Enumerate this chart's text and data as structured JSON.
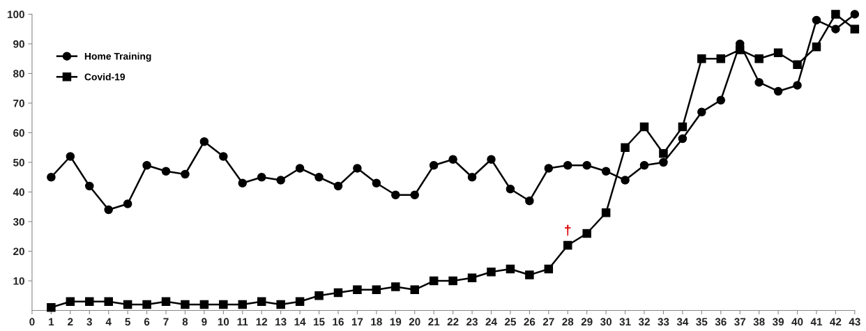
{
  "chart_data": {
    "type": "line",
    "x": [
      1,
      2,
      3,
      4,
      5,
      6,
      7,
      8,
      9,
      10,
      11,
      12,
      13,
      14,
      15,
      16,
      17,
      18,
      19,
      20,
      21,
      22,
      23,
      24,
      25,
      26,
      27,
      28,
      29,
      30,
      31,
      32,
      33,
      34,
      35,
      36,
      37,
      38,
      39,
      40,
      41,
      42,
      43
    ],
    "series": [
      {
        "name": "Home Training",
        "color": "#000000",
        "marker": "circle",
        "values": [
          45,
          52,
          42,
          34,
          36,
          49,
          47,
          46,
          57,
          52,
          43,
          45,
          44,
          48,
          45,
          42,
          48,
          43,
          39,
          39,
          49,
          51,
          45,
          51,
          41,
          37,
          48,
          49,
          49,
          47,
          44,
          49,
          50,
          58,
          67,
          71,
          90,
          77,
          74,
          76,
          98,
          95,
          100
        ]
      },
      {
        "name": "Covid-19",
        "color": "#000000",
        "marker": "square",
        "values": [
          1,
          3,
          3,
          3,
          2,
          2,
          3,
          2,
          2,
          2,
          2,
          3,
          2,
          3,
          5,
          6,
          7,
          7,
          8,
          7,
          10,
          10,
          11,
          13,
          14,
          12,
          14,
          22,
          26,
          33,
          55,
          62,
          53,
          62,
          85,
          85,
          88,
          85,
          87,
          83,
          89,
          100,
          95
        ]
      }
    ],
    "xlim": [
      0,
      43
    ],
    "xticks": [
      0,
      1,
      2,
      3,
      4,
      5,
      6,
      7,
      8,
      9,
      10,
      11,
      12,
      13,
      14,
      15,
      16,
      17,
      18,
      19,
      20,
      21,
      22,
      23,
      24,
      25,
      26,
      27,
      28,
      29,
      30,
      31,
      32,
      33,
      34,
      35,
      36,
      37,
      38,
      39,
      40,
      41,
      42,
      43
    ],
    "ylim": [
      0,
      100
    ],
    "yticks": [
      10,
      20,
      30,
      40,
      50,
      60,
      70,
      80,
      90,
      100
    ],
    "annotations": [
      {
        "text": "†",
        "x": 28,
        "y": 22
      }
    ],
    "legend": "top left",
    "grid": false,
    "line_style": "solid"
  }
}
